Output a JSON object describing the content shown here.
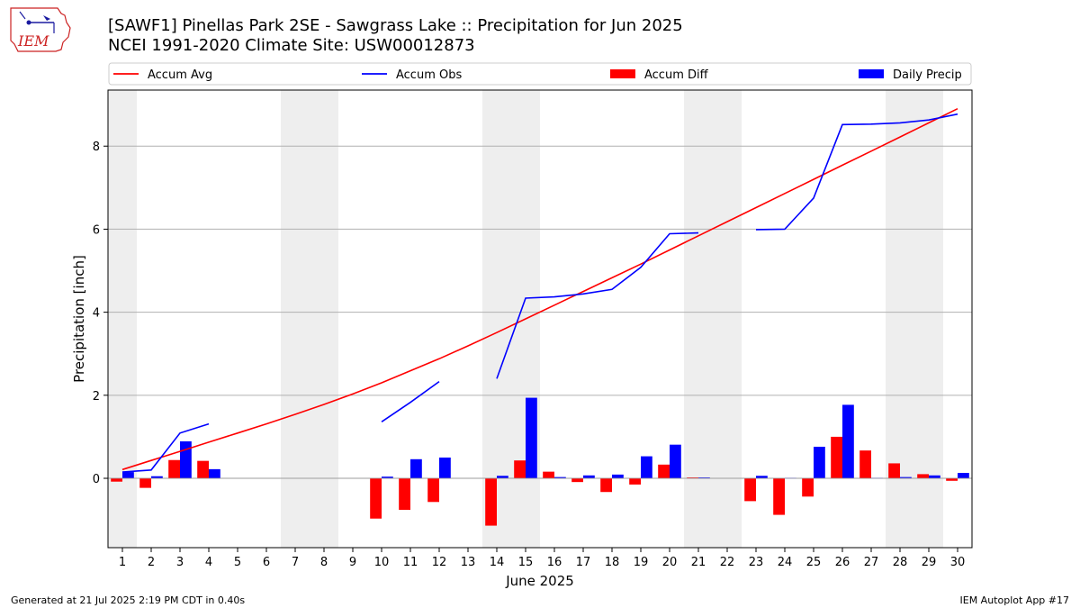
{
  "title_line1": "[SAWF1] Pinellas Park 2SE - Sawgrass Lake :: Precipitation for Jun 2025",
  "title_line2": "NCEI 1991-2020 Climate Site: USW00012873",
  "logo_text": "IEM",
  "footer_left": "Generated at 21 Jul 2025 2:19 PM CDT in 0.40s",
  "footer_right": "IEM Autoplot App #17",
  "colors": {
    "avg": "#ff0000",
    "obs": "#0000ff",
    "diff": "#ff0000",
    "daily": "#0000ff",
    "weekend": "#eeeeee",
    "grid": "#b0b0b0"
  },
  "chart_data": {
    "type": "bar",
    "xlabel": "June 2025",
    "ylabel": "Precipitation [inch]",
    "x": [
      1,
      2,
      3,
      4,
      5,
      6,
      7,
      8,
      9,
      10,
      11,
      12,
      13,
      14,
      15,
      16,
      17,
      18,
      19,
      20,
      21,
      22,
      23,
      24,
      25,
      26,
      27,
      28,
      29,
      30
    ],
    "xlim": [
      0.5,
      30.5
    ],
    "ylim": [
      -1.67,
      9.35
    ],
    "yticks": [
      0,
      2,
      4,
      6,
      8
    ],
    "grid": "horizontal",
    "legend_position": "top",
    "shaded_days": [
      1,
      7,
      8,
      14,
      15,
      21,
      22,
      28,
      29
    ],
    "series": [
      {
        "name": "Accum Avg",
        "kind": "line",
        "color": "#ff0000",
        "values": [
          0.21,
          0.43,
          0.65,
          0.87,
          1.09,
          1.31,
          1.54,
          1.78,
          2.03,
          2.3,
          2.59,
          2.88,
          3.19,
          3.51,
          3.84,
          4.17,
          4.5,
          4.83,
          5.16,
          5.5,
          5.84,
          6.18,
          6.52,
          6.86,
          7.2,
          7.54,
          7.88,
          8.22,
          8.56,
          8.9
        ]
      },
      {
        "name": "Accum Obs",
        "kind": "line",
        "color": "#0000ff",
        "values": [
          0.15,
          0.2,
          1.09,
          1.31,
          null,
          null,
          null,
          null,
          null,
          1.36,
          1.83,
          2.33,
          null,
          2.4,
          4.34,
          4.37,
          4.44,
          4.55,
          5.08,
          5.89,
          5.91,
          null,
          5.99,
          6.0,
          6.75,
          8.52,
          8.53,
          8.56,
          8.63,
          8.77
        ]
      },
      {
        "name": "Accum Diff",
        "kind": "bar",
        "color": "#ff0000",
        "values": [
          -0.08,
          -0.23,
          0.44,
          0.42,
          null,
          null,
          null,
          null,
          null,
          -0.97,
          -0.76,
          -0.57,
          null,
          -1.14,
          0.43,
          0.16,
          -0.09,
          -0.33,
          -0.15,
          0.33,
          0.02,
          null,
          -0.55,
          -0.88,
          -0.44,
          1.0,
          0.67,
          0.36,
          0.1,
          -0.06
        ]
      },
      {
        "name": "Daily Precip",
        "kind": "bar",
        "color": "#0000ff",
        "values": [
          0.15,
          0.05,
          0.89,
          0.22,
          null,
          null,
          null,
          null,
          null,
          0.04,
          0.46,
          0.5,
          null,
          0.06,
          1.94,
          0.03,
          0.07,
          0.09,
          0.53,
          0.81,
          0.02,
          null,
          0.06,
          0.01,
          0.76,
          1.77,
          0.01,
          0.03,
          0.07,
          0.13
        ]
      }
    ]
  }
}
